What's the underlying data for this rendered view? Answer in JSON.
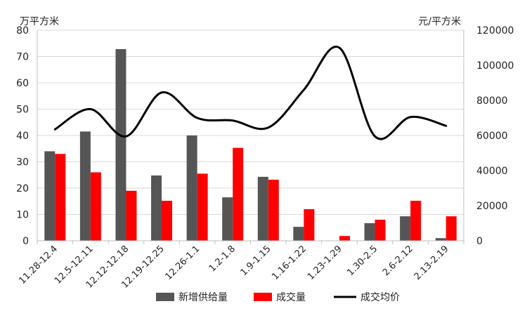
{
  "chart_data": {
    "type": "bar",
    "title": "",
    "categories": [
      "11.28-12.4",
      "12.5-12.11",
      "12.12-12.18",
      "12.19-12.25",
      "12.26-1.1",
      "1.2-1.8",
      "1.9-1.15",
      "1.16-1.22",
      "1.23-1.29",
      "1.30-2.5",
      "2.6-2.12",
      "2.13-2.19"
    ],
    "series": [
      {
        "name": "新增供给量",
        "kind": "bar",
        "axis": "left",
        "color": "#555555",
        "values": [
          34,
          41.5,
          72.8,
          24.8,
          40,
          16.5,
          24.3,
          5.3,
          0,
          6.7,
          9.3,
          1
        ]
      },
      {
        "name": "成交量",
        "kind": "bar",
        "axis": "left",
        "color": "#ff0000",
        "values": [
          33,
          26,
          19,
          15.2,
          25.5,
          35.3,
          23.2,
          12,
          1.8,
          8,
          15.2,
          9.3
        ]
      },
      {
        "name": "成交均价",
        "kind": "line",
        "axis": "right",
        "color": "#000000",
        "values": [
          63500,
          75000,
          59500,
          84500,
          70000,
          68500,
          64500,
          86000,
          110000,
          59500,
          70500,
          65500
        ]
      }
    ],
    "left_axis": {
      "label": "万平方米",
      "ylim": [
        0,
        80
      ],
      "ticks": [
        0,
        10,
        20,
        30,
        40,
        50,
        60,
        70,
        80
      ]
    },
    "right_axis": {
      "label": "元/平方米",
      "ylim": [
        0,
        120000
      ],
      "ticks": [
        0,
        20000,
        40000,
        60000,
        80000,
        100000,
        120000
      ]
    },
    "grid": true,
    "legend_position": "bottom"
  }
}
